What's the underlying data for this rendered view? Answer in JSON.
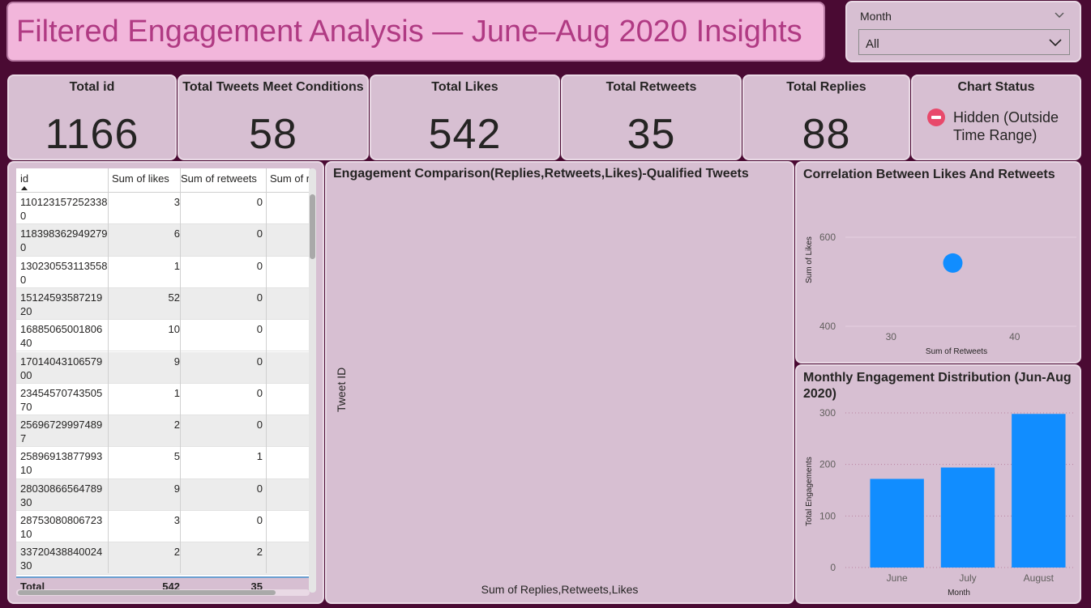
{
  "title": "Filtered Engagement Analysis — June–Aug 2020 Insights",
  "slicer": {
    "label": "Month",
    "value": "All"
  },
  "cards": [
    {
      "title": "Total id",
      "value": "1166"
    },
    {
      "title": "Total Tweets Meet Conditions",
      "value": "58"
    },
    {
      "title": "Total Likes",
      "value": "542"
    },
    {
      "title": "Total Retweets",
      "value": "35"
    },
    {
      "title": "Total Replies",
      "value": "88"
    }
  ],
  "chart_status": {
    "title": "Chart Status",
    "text": "Hidden (Outside Time Range)"
  },
  "table": {
    "headers": [
      "id",
      "Sum of likes",
      "Sum of retweets",
      "Sum of r"
    ],
    "rows": [
      {
        "id": "1101231572523380",
        "likes": "3",
        "retweets": "0"
      },
      {
        "id": "1183983629492790",
        "likes": "6",
        "retweets": "0"
      },
      {
        "id": "1302305531135580",
        "likes": "1",
        "retweets": "0"
      },
      {
        "id": "1512459358721920",
        "likes": "52",
        "retweets": "0"
      },
      {
        "id": "1688506500180640",
        "likes": "10",
        "retweets": "0"
      },
      {
        "id": "1701404310657900",
        "likes": "9",
        "retweets": "0"
      },
      {
        "id": "2345457074350570",
        "likes": "1",
        "retweets": "0"
      },
      {
        "id": "256967299974897",
        "likes": "2",
        "retweets": "0"
      },
      {
        "id": "2589691387799310",
        "likes": "5",
        "retweets": "1"
      },
      {
        "id": "2803086656478930",
        "likes": "9",
        "retweets": "0"
      },
      {
        "id": "2875308080672310",
        "likes": "3",
        "retweets": "0"
      },
      {
        "id": "3372043884002430",
        "likes": "2",
        "retweets": "2"
      }
    ],
    "total": {
      "label": "Total",
      "likes": "542",
      "retweets": "35"
    }
  },
  "engagement_chart": {
    "title": "Engagement Comparison(Replies,Retweets,Likes)-Qualified Tweets",
    "ylabel": "Tweet ID",
    "xlabel": "Sum of Replies,Retweets,Likes"
  },
  "chart_data": [
    {
      "type": "scatter",
      "title": "Correlation Between Likes And Retweets",
      "xlabel": "Sum of Retweets",
      "ylabel": "Sum of Likes",
      "xticks": [
        "30",
        "40"
      ],
      "yticks": [
        "400",
        "600"
      ],
      "xlim": [
        25,
        45
      ],
      "ylim": [
        400,
        600
      ],
      "points": [
        {
          "x": 35,
          "y": 542
        }
      ],
      "color": "#118dff"
    },
    {
      "type": "bar",
      "title": "Monthly Engagement Distribution (Jun-Aug 2020)",
      "categories": [
        "June",
        "July",
        "August"
      ],
      "values": [
        172,
        194,
        298
      ],
      "xlabel": "Month",
      "ylabel": "Total Engagements",
      "yticks": [
        "0",
        "100",
        "200",
        "300"
      ],
      "ylim": [
        0,
        300
      ],
      "color": "#118dff"
    }
  ]
}
